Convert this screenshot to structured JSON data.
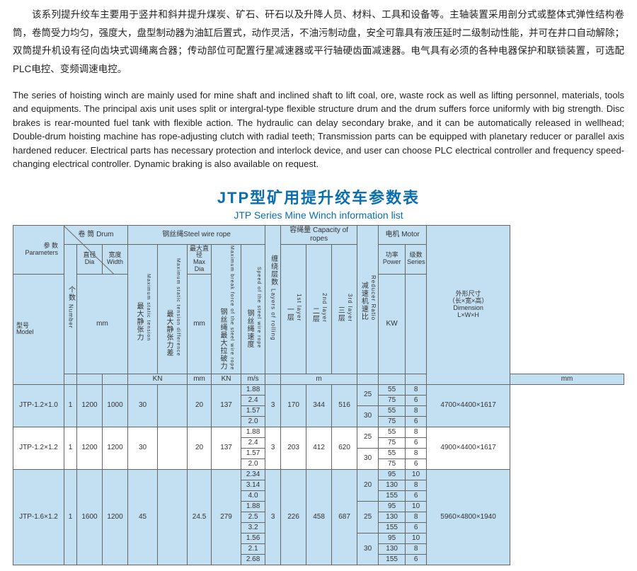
{
  "desc_cn": "该系列提升绞车主要用于竖井和斜井提升煤炭、矿石、矸石以及升降人员、材料、工具和设备等。主轴装置采用剖分式或整体式弹性结构卷筒，卷筒受力均匀，强度大，盘型制动器为油缸后置式，动作灵活，不油污制动盘，安全可靠具有液压延时二级制动性能，并可在井口自动解除；双筒提升机设有径向齿块式调绳离合器；传动部位可配置行星减速器或平行轴硬齿面减速器。电气具有必须的各种电器保护和联锁装置，可选配PLC电控、变频调速电控。",
  "desc_en": "The series of hoisting winch are mainly used for mine shaft and inclined shaft to lift coal, ore, waste rock as well as lifting personnel, materials, tools and equipments. The principal axis unit uses split or intergral-type flexible structure drum and the drum suffers force uniformly with big strength. Disc brakes is rear-mounted fuel tank with flexible action. The hydraulic can delay secondary brake, and it can be automatically released in wellhead; Double-drum hoisting machine has rope-adjusting clutch with radial teeth; Transmission parts can be equipped with planetary reducer or parallel axis hardened reducer. Electrical parts has necessary protection and interlock device, and user can choose PLC electrical controller and frequency speed-changing electrical controller. Dynamic braking is also available on request.",
  "title_cn": "JTP型矿用提升绞车参数表",
  "title_en": "JTP Series Mine Winch information list",
  "hdr": {
    "params_cn": "参 数",
    "params_en": "Parameters",
    "model_cn": "型号",
    "model_en": "Model",
    "drum_cn": "卷 筒",
    "drum_en": "Drum",
    "num_cn": "个数",
    "num_en": "Number",
    "dia_cn": "直径",
    "dia_en": "Dia",
    "wid_cn": "宽度",
    "wid_en": "Width",
    "swr_cn": "钢丝绳",
    "swr_en": "Steel wire rope",
    "mst_cn": "最大静张力",
    "mst_en": "Maximum static tension",
    "mstd_cn": "最大静张力差",
    "mstd_en": "Maximum static tension difference",
    "maxdia_cn": "最大直径",
    "maxdia_en": "Max Dia",
    "break_cn": "钢丝绳最大拉破力",
    "break_en": "Maximum break force of the steel wire rope",
    "speed_cn": "钢丝绳速度",
    "speed_en": "Speed of the steel wire rope",
    "layers_cn": "缠绕层数",
    "layers_en": "Layers of rolling",
    "cap_cn": "容绳量",
    "cap_en": "Capacity of ropes",
    "l1_cn": "一层",
    "l1_en": "1st layer",
    "l2_cn": "二层",
    "l2_en": "2nd layer",
    "l3_cn": "三层",
    "l3_en": "3rd layer",
    "rr_cn": "减速机速比",
    "rr_en": "Reducer Ratio",
    "motor_cn": "电机",
    "motor_en": "Motor",
    "pow_cn": "功率",
    "pow_en": "Power",
    "ser_cn": "级数",
    "ser_en": "Series",
    "dim_cn": "外形尺寸",
    "dim_cn2": "（长×宽×高）",
    "dim_en": "Dimension",
    "dim_en2": "L×W×H",
    "u_mm": "mm",
    "u_kn": "KN",
    "u_ms": "m/s",
    "u_m": "m",
    "u_kw": "KW"
  },
  "rows": [
    {
      "model": "JTP-1.2×1.0",
      "n": "1",
      "dia": "1200",
      "wid": "1000",
      "mst": "30",
      "mstd": "",
      "maxdia": "20",
      "break": "137",
      "speeds": [
        "1.88",
        "2.4",
        "1.57",
        "2.0"
      ],
      "lay": "3",
      "l1": "170",
      "l2": "344",
      "l3": "516",
      "rr": [
        "25",
        "30"
      ],
      "pow": [
        "55",
        "75",
        "55",
        "75"
      ],
      "ser": [
        "8",
        "6",
        "8",
        "6"
      ],
      "dim": "4700×4400×1617"
    },
    {
      "model": "JTP-1.2×1.2",
      "n": "1",
      "dia": "1200",
      "wid": "1200",
      "mst": "30",
      "mstd": "",
      "maxdia": "20",
      "break": "137",
      "speeds": [
        "1.88",
        "2.4",
        "1.57",
        "2.0"
      ],
      "lay": "3",
      "l1": "203",
      "l2": "412",
      "l3": "620",
      "rr": [
        "25",
        "30"
      ],
      "pow": [
        "55",
        "75",
        "55",
        "75"
      ],
      "ser": [
        "8",
        "6",
        "8",
        "6"
      ],
      "dim": "4900×4400×1617"
    },
    {
      "model": "JTP-1.6×1.2",
      "n": "1",
      "dia": "1600",
      "wid": "1200",
      "mst": "45",
      "mstd": "",
      "maxdia": "24.5",
      "break": "279",
      "speeds": [
        "2.34",
        "3.14",
        "4.0",
        "1.88",
        "2.5",
        "3.2",
        "1.56",
        "2.1",
        "2.68"
      ],
      "lay": "3",
      "l1": "226",
      "l2": "458",
      "l3": "687",
      "rr": [
        "20",
        "25",
        "30"
      ],
      "pow": [
        "95",
        "130",
        "155",
        "95",
        "130",
        "155",
        "95",
        "130",
        "155"
      ],
      "ser": [
        "10",
        "8",
        "6",
        "10",
        "8",
        "6",
        "10",
        "8",
        "6"
      ],
      "dim": "5960×4800×1940"
    }
  ]
}
